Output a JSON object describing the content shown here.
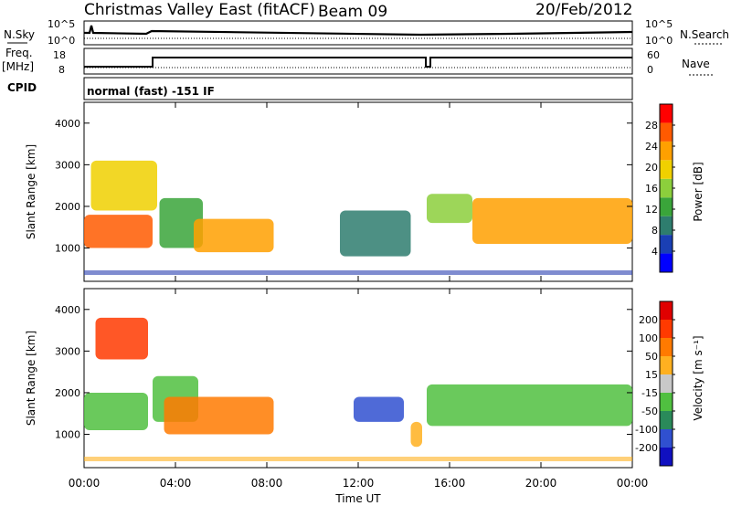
{
  "header": {
    "title": "Christmas Valley East (fitACF)",
    "beam": "Beam 09",
    "date": "20/Feb/2012"
  },
  "panels": {
    "nsky_label": "N.Sky",
    "nsky_ticks": [
      "10^5",
      "10^0"
    ],
    "nsearch_label": "N.Search",
    "nsearch_ticks": [
      "10^5",
      "10^0"
    ],
    "freq_label": "Freq.",
    "freq_unit": "[MHz]",
    "freq_ticks": [
      "18",
      "8"
    ],
    "nave_label": "Nave",
    "nave_ticks": [
      "60",
      "0"
    ],
    "cpid_label": "CPID",
    "cpid_value": "normal (fast) -151 IF"
  },
  "chart_data": [
    {
      "type": "heatmap",
      "name": "power",
      "ylabel": "Slant Range [km]",
      "yticks": [
        "4000",
        "3000",
        "2000",
        "1000"
      ],
      "ylim": [
        200,
        4500
      ],
      "colorbar_label": "Power [dB]",
      "colorbar_ticks": [
        "28",
        "24",
        "20",
        "16",
        "12",
        "8",
        "4"
      ],
      "colorbar_colors": [
        "#0000ff",
        "#1a3fb4",
        "#2e7d6e",
        "#3aa53a",
        "#8ccf3c",
        "#f0d000",
        "#ffa000",
        "#ff5a00",
        "#ff0000"
      ],
      "bands": [
        {
          "t0": 0.0,
          "t1": 3.0,
          "r0": 1000,
          "r1": 1800,
          "level": 28
        },
        {
          "t0": 0.3,
          "t1": 3.2,
          "r0": 1900,
          "r1": 3100,
          "level": 20
        },
        {
          "t0": 3.3,
          "t1": 5.2,
          "r0": 1000,
          "r1": 2200,
          "level": 12
        },
        {
          "t0": 4.8,
          "t1": 8.3,
          "r0": 900,
          "r1": 1700,
          "level": 24
        },
        {
          "t0": 11.2,
          "t1": 14.3,
          "r0": 800,
          "r1": 1900,
          "level": 8
        },
        {
          "t0": 15.0,
          "t1": 17.0,
          "r0": 1600,
          "r1": 2300,
          "level": 16
        },
        {
          "t0": 17.0,
          "t1": 24.0,
          "r0": 1100,
          "r1": 2200,
          "level": 22
        }
      ]
    },
    {
      "type": "heatmap",
      "name": "velocity",
      "ylabel": "Slant Range [km]",
      "yticks": [
        "4000",
        "3000",
        "2000",
        "1000"
      ],
      "ylim": [
        200,
        4500
      ],
      "xlabel": "Time UT",
      "xticks": [
        "00:00",
        "04:00",
        "08:00",
        "12:00",
        "16:00",
        "20:00",
        "00:00"
      ],
      "xlim": [
        0,
        24
      ],
      "colorbar_label": "Velocity [m s⁻¹]",
      "colorbar_ticks": [
        "200",
        "100",
        "50",
        "15",
        "-15",
        "-50",
        "-100",
        "-200"
      ],
      "colorbar_colors": [
        "#1010c0",
        "#3050d0",
        "#2a8a5a",
        "#50c040",
        "#c8c8c8",
        "#ffb020",
        "#ff7a00",
        "#ff3a00",
        "#e00000"
      ],
      "bands": [
        {
          "t0": 0.0,
          "t1": 2.8,
          "r0": 1100,
          "r1": 2000,
          "level": -15
        },
        {
          "t0": 0.5,
          "t1": 2.8,
          "r0": 2800,
          "r1": 3800,
          "level": 200
        },
        {
          "t0": 3.0,
          "t1": 5.0,
          "r0": 1300,
          "r1": 2400,
          "level": -15
        },
        {
          "t0": 3.5,
          "t1": 8.3,
          "r0": 1000,
          "r1": 1900,
          "level": 100
        },
        {
          "t0": 11.8,
          "t1": 14.0,
          "r0": 1300,
          "r1": 1900,
          "level": -100
        },
        {
          "t0": 14.3,
          "t1": 14.8,
          "r0": 700,
          "r1": 1300,
          "level": 50
        },
        {
          "t0": 15.0,
          "t1": 24.0,
          "r0": 1200,
          "r1": 2200,
          "level": -15
        }
      ]
    }
  ]
}
